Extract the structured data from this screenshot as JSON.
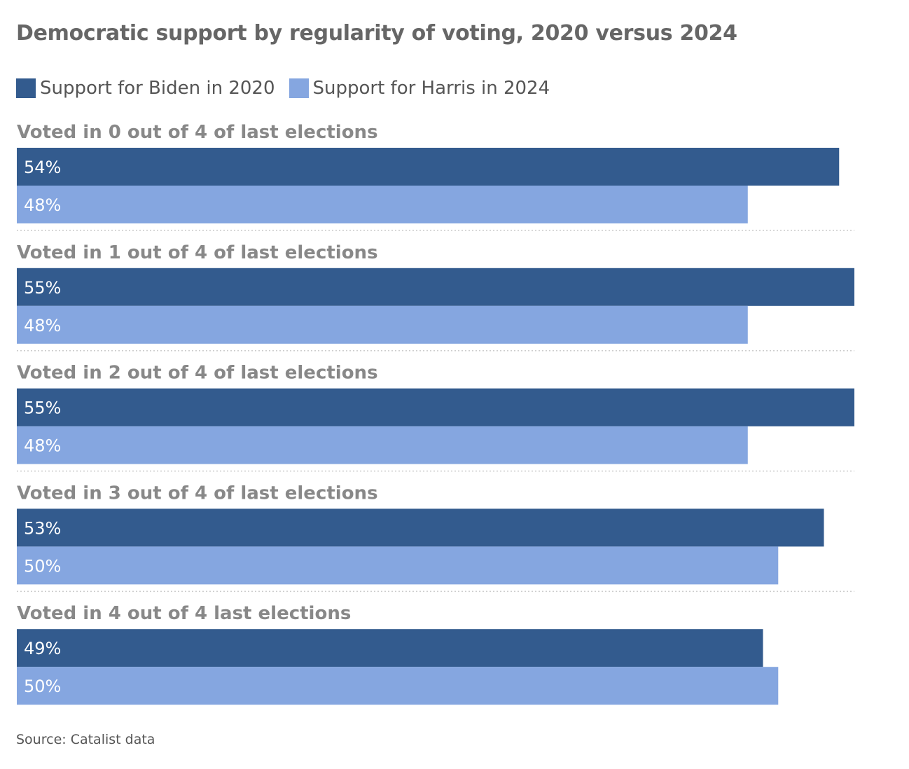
{
  "colors": {
    "biden": "#335b8e",
    "harris": "#85a6e0",
    "group_label": "#888888",
    "title": "#666666",
    "divider": "#cccccc",
    "bar_text": "#ffffff"
  },
  "source_text": "Source: Catalist data",
  "chart_data": {
    "type": "bar",
    "orientation": "horizontal",
    "title": "Democratic support by regularity of voting, 2020 versus 2024",
    "legend_position": "top-left",
    "grid": false,
    "categories": [
      "Voted in 0 out of 4 of last elections",
      "Voted in 1 out of 4 of last elections",
      "Voted in 2 out of 4 of last elections",
      "Voted in 3 out of 4 of last elections",
      "Voted in 4 out of 4 last elections"
    ],
    "series": [
      {
        "name": "Support for Biden in 2020",
        "color": "#335b8e",
        "values": [
          54,
          55,
          55,
          53,
          49
        ],
        "labels": [
          "54%",
          "55%",
          "55%",
          "53%",
          "49%"
        ]
      },
      {
        "name": "Support for Harris in 2024",
        "color": "#85a6e0",
        "values": [
          48,
          48,
          48,
          50,
          50
        ],
        "labels": [
          "48%",
          "48%",
          "48%",
          "50%",
          "50%"
        ]
      }
    ],
    "value_max": 55
  }
}
